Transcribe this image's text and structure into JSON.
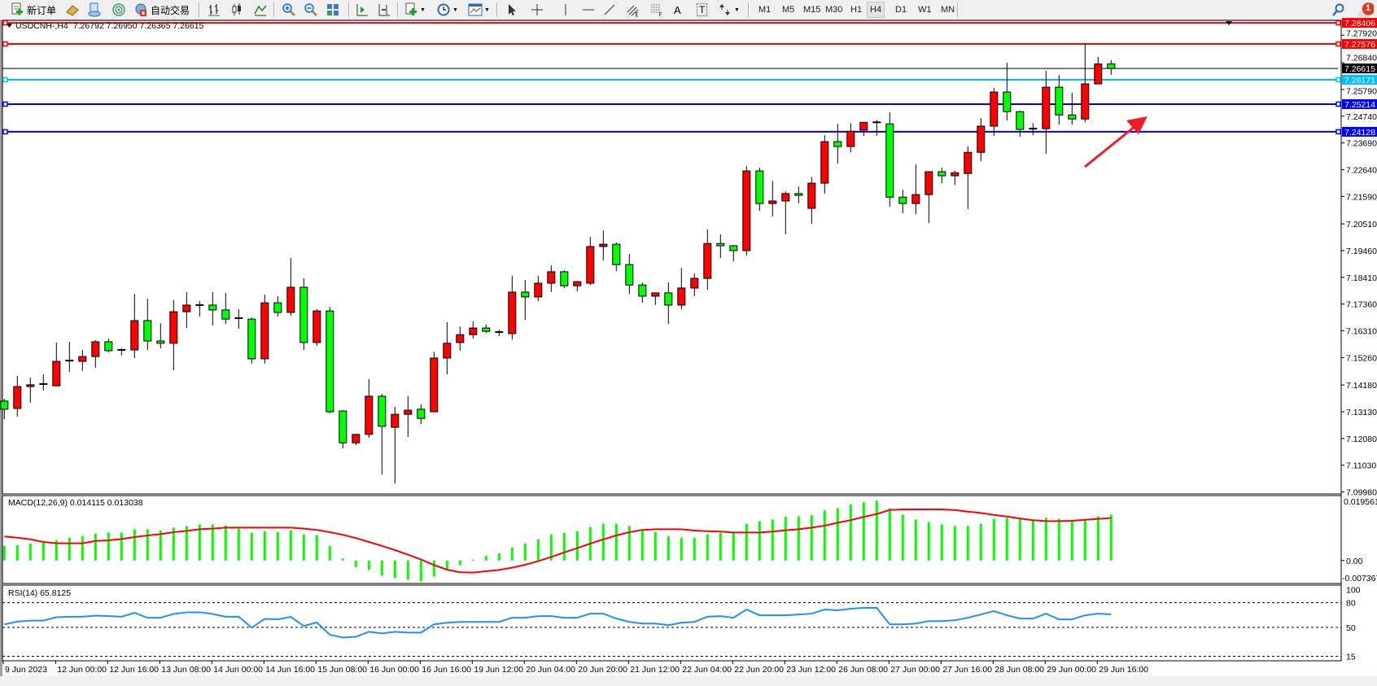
{
  "toolbar": {
    "new_order": "新订单",
    "auto_trading": "自动交易",
    "text_tool": "A",
    "label_tool": "T",
    "timeframes": [
      "M1",
      "M5",
      "M15",
      "M30",
      "H1",
      "H4",
      "D1",
      "W1",
      "MN"
    ],
    "active_timeframe": "H4",
    "notification_count": "1",
    "icons": [
      "new-order-icon",
      "market-watch-icon",
      "history-center-icon",
      "signals-icon",
      "auto-trading-icon",
      "bar-chart-icon",
      "candlestick-icon",
      "line-chart-icon",
      "zoom-in-icon",
      "zoom-out-icon",
      "tile-windows-icon",
      "auto-scroll-icon",
      "chart-shift-icon",
      "indicators-icon",
      "periods-icon",
      "templates-icon",
      "cursor-icon",
      "crosshair-icon",
      "vertical-line-icon",
      "horizontal-line-icon",
      "trendline-icon",
      "fibonacci-channel-icon",
      "fibonacci-retracement-icon",
      "arrows-icon",
      "search-icon",
      "notification-icon"
    ]
  },
  "chart": {
    "symbol_label": "USDCNH-,H4",
    "ohlc_label": "7.26792 7.26950 7.26365 7.26615",
    "bull_color": "#ff0000",
    "bear_color": "#00ff00",
    "arrow_color": "#ee1c24"
  },
  "chart_data": {
    "type": "candlestick",
    "candles_ohlc": [
      [
        7.1355,
        7.1364,
        7.1284,
        7.1323
      ],
      [
        7.1326,
        7.1454,
        7.1294,
        7.1412
      ],
      [
        7.1412,
        7.1447,
        7.1348,
        7.1419
      ],
      [
        7.1419,
        7.146,
        7.1396,
        7.1422
      ],
      [
        7.1415,
        7.1585,
        7.1415,
        7.1511
      ],
      [
        7.1511,
        7.1588,
        7.147,
        7.1514
      ],
      [
        7.1511,
        7.1556,
        7.1473,
        7.153
      ],
      [
        7.153,
        7.1594,
        7.1486,
        7.1588
      ],
      [
        7.1588,
        7.1601,
        7.1546,
        7.1553
      ],
      [
        7.1553,
        7.1562,
        7.1534,
        7.1556
      ],
      [
        7.1556,
        7.1776,
        7.1524,
        7.1671
      ],
      [
        7.1671,
        7.1757,
        7.1556,
        7.1591
      ],
      [
        7.1591,
        7.1661,
        7.1562,
        7.1582
      ],
      [
        7.1582,
        7.1751,
        7.1476,
        7.1706
      ],
      [
        7.1706,
        7.1783,
        7.1642,
        7.1732
      ],
      [
        7.1732,
        7.1748,
        7.1687,
        7.1729
      ],
      [
        7.1732,
        7.1783,
        7.1652,
        7.1713
      ],
      [
        7.1713,
        7.178,
        7.1658,
        7.1677
      ],
      [
        7.1681,
        7.1716,
        7.1639,
        7.1677
      ],
      [
        7.1677,
        7.1684,
        7.1502,
        7.1521
      ],
      [
        7.1521,
        7.1773,
        7.1502,
        7.1741
      ],
      [
        7.1741,
        7.1767,
        7.1687,
        7.1703
      ],
      [
        7.1703,
        7.1917,
        7.169,
        7.1802
      ],
      [
        7.1802,
        7.1837,
        7.1556,
        7.1585
      ],
      [
        7.1585,
        7.1716,
        7.1572,
        7.1709
      ],
      [
        7.1709,
        7.1725,
        7.1307,
        7.1313
      ],
      [
        7.1316,
        7.1319,
        7.1169,
        7.1191
      ],
      [
        7.1191,
        7.1224,
        7.1182,
        7.1224
      ],
      [
        7.1224,
        7.1441,
        7.1211,
        7.1374
      ],
      [
        7.1374,
        7.1383,
        7.1067,
        7.1256
      ],
      [
        7.1252,
        7.1332,
        7.1032,
        7.1303
      ],
      [
        7.1303,
        7.1374,
        7.1214,
        7.1319
      ],
      [
        7.1323,
        7.1342,
        7.1265,
        7.1287
      ],
      [
        7.1313,
        7.1549,
        7.1313,
        7.1524
      ],
      [
        7.1524,
        7.1665,
        7.146,
        7.1582
      ],
      [
        7.1585,
        7.1648,
        7.1553,
        7.1616
      ],
      [
        7.1616,
        7.1668,
        7.1601,
        7.1642
      ],
      [
        7.1642,
        7.1655,
        7.1623,
        7.1629
      ],
      [
        7.1626,
        7.1636,
        7.161,
        7.162
      ],
      [
        7.162,
        7.1847,
        7.1597,
        7.1783
      ],
      [
        7.1783,
        7.1831,
        7.1674,
        7.1764
      ],
      [
        7.1764,
        7.1847,
        7.1748,
        7.1818
      ],
      [
        7.1818,
        7.1888,
        7.1783,
        7.1863
      ],
      [
        7.1863,
        7.1869,
        7.1799,
        7.1808
      ],
      [
        7.1808,
        7.1827,
        7.1786,
        7.1824
      ],
      [
        7.1818,
        7.2,
        7.1811,
        7.1962
      ],
      [
        7.1962,
        7.2025,
        7.1907,
        7.1971
      ],
      [
        7.1971,
        7.1978,
        7.1866,
        7.1891
      ],
      [
        7.1891,
        7.1933,
        7.1776,
        7.1811
      ],
      [
        7.1811,
        7.1821,
        7.1741,
        7.1767
      ],
      [
        7.1767,
        7.178,
        7.1732,
        7.178
      ],
      [
        7.178,
        7.1821,
        7.1658,
        7.1732
      ],
      [
        7.1732,
        7.1878,
        7.1716,
        7.1799
      ],
      [
        7.1799,
        7.1856,
        7.1767,
        7.1837
      ],
      [
        7.1837,
        7.2029,
        7.1792,
        7.1974
      ],
      [
        7.1974,
        7.201,
        7.1917,
        7.1965
      ],
      [
        7.1965,
        7.1968,
        7.1904,
        7.1946
      ],
      [
        7.1946,
        7.2278,
        7.1926,
        7.2259
      ],
      [
        7.2259,
        7.2272,
        7.2102,
        7.2131
      ],
      [
        7.2131,
        7.222,
        7.208,
        7.2141
      ],
      [
        7.2141,
        7.2179,
        7.201,
        7.217
      ],
      [
        7.217,
        7.2198,
        7.2131,
        7.2163
      ],
      [
        7.2112,
        7.2236,
        7.2051,
        7.2211
      ],
      [
        7.2211,
        7.2399,
        7.217,
        7.2374
      ],
      [
        7.2374,
        7.2444,
        7.2288,
        7.2355
      ],
      [
        7.2355,
        7.2447,
        7.2332,
        7.2415
      ],
      [
        7.2419,
        7.245,
        7.2396,
        7.245
      ],
      [
        7.245,
        7.246,
        7.2396,
        7.2444
      ],
      [
        7.2444,
        7.2489,
        7.2118,
        7.2156
      ],
      [
        7.2156,
        7.2185,
        7.2093,
        7.2131
      ],
      [
        7.2131,
        7.2284,
        7.2089,
        7.2166
      ],
      [
        7.2166,
        7.2256,
        7.2054,
        7.2256
      ],
      [
        7.2256,
        7.2272,
        7.2211,
        7.224
      ],
      [
        7.224,
        7.2259,
        7.2204,
        7.2252
      ],
      [
        7.2249,
        7.2355,
        7.2109,
        7.2332
      ],
      [
        7.2332,
        7.2467,
        7.2297,
        7.2435
      ],
      [
        7.2435,
        7.2585,
        7.2396,
        7.2569
      ],
      [
        7.2569,
        7.2684,
        7.2457,
        7.2492
      ],
      [
        7.2492,
        7.2495,
        7.2393,
        7.2422
      ],
      [
        7.2422,
        7.2447,
        7.2399,
        7.2425
      ],
      [
        7.2425,
        7.2652,
        7.2326,
        7.2588
      ],
      [
        7.2588,
        7.2636,
        7.2441,
        7.2479
      ],
      [
        7.2479,
        7.2566,
        7.2441,
        7.2463
      ],
      [
        7.2463,
        7.2757,
        7.245,
        7.2601
      ],
      [
        7.2601,
        7.2707,
        7.2601,
        7.2679
      ],
      [
        7.26792,
        7.2695,
        7.26365,
        7.26615
      ]
    ],
    "price_ticks": [
      "7.27920",
      "7.26840",
      "7.25790",
      "7.24740",
      "7.23690",
      "7.22640",
      "7.21590",
      "7.20510",
      "7.19460",
      "7.18410",
      "7.17360",
      "7.16310",
      "7.15260",
      "7.14180",
      "7.13130",
      "7.12080",
      "7.11030",
      "7.09980"
    ],
    "ylim": [
      7.0998,
      7.28406
    ],
    "horizontal_lines": [
      {
        "price": "7.28406",
        "color": "#ff0000",
        "text_color": "#ffffff"
      },
      {
        "price": "7.27576",
        "color": "#ff0000",
        "text_color": "#ffffff"
      },
      {
        "price": "7.26615",
        "color": "#000000",
        "text_color": "#ffffff"
      },
      {
        "price": "7.26171",
        "color": "#00bfff",
        "text_color": "#ffffff"
      },
      {
        "price": "7.25214",
        "color": "#0000ff",
        "text_color": "#ffffff"
      },
      {
        "price": "7.24128",
        "color": "#0000ff",
        "text_color": "#ffffff"
      }
    ],
    "time_labels": [
      {
        "label": "9 Jun 2023",
        "bar": 0
      },
      {
        "label": "12 Jun 00:00",
        "bar": 4
      },
      {
        "label": "12 Jun 16:00",
        "bar": 8
      },
      {
        "label": "13 Jun 08:00",
        "bar": 12
      },
      {
        "label": "14 Jun 00:00",
        "bar": 16
      },
      {
        "label": "14 Jun 16:00",
        "bar": 20
      },
      {
        "label": "15 Jun 08:00",
        "bar": 24
      },
      {
        "label": "16 Jun 00:00",
        "bar": 28
      },
      {
        "label": "16 Jun 16:00",
        "bar": 32
      },
      {
        "label": "19 Jun 12:00",
        "bar": 36
      },
      {
        "label": "20 Jun 04:00",
        "bar": 40
      },
      {
        "label": "20 Jun 20:00",
        "bar": 44
      },
      {
        "label": "21 Jun 12:00",
        "bar": 48
      },
      {
        "label": "22 Jun 04:00",
        "bar": 52
      },
      {
        "label": "22 Jun 20:00",
        "bar": 56
      },
      {
        "label": "23 Jun 12:00",
        "bar": 60
      },
      {
        "label": "26 Jun 08:00",
        "bar": 64
      },
      {
        "label": "27 Jun 00:00",
        "bar": 68
      },
      {
        "label": "27 Jun 16:00",
        "bar": 72
      },
      {
        "label": "28 Jun 08:00",
        "bar": 76
      },
      {
        "label": "29 Jun 00:00",
        "bar": 80
      },
      {
        "label": "29 Jun 16:00",
        "bar": 84
      }
    ],
    "macd": {
      "title": "MACD(12,26,9) 0.014115 0.013038",
      "axis_labels": [
        "0.019561",
        "0.00",
        "-0.007367"
      ],
      "ylim": [
        -0.007367,
        0.019561
      ],
      "histogram_color": "#00ff00",
      "signal_color": "#ff0000",
      "histogram": [
        0.0045,
        0.0047,
        0.0052,
        0.0056,
        0.0063,
        0.007,
        0.0075,
        0.0083,
        0.0086,
        0.0086,
        0.0096,
        0.0096,
        0.0092,
        0.0101,
        0.0106,
        0.0111,
        0.0111,
        0.0108,
        0.0098,
        0.0085,
        0.009,
        0.0088,
        0.0093,
        0.008,
        0.0078,
        0.0045,
        0.0006,
        -0.002,
        -0.0029,
        -0.0046,
        -0.0054,
        -0.0059,
        -0.0064,
        -0.0049,
        -0.003,
        -0.0014,
        0.0003,
        0.0014,
        0.0022,
        0.004,
        0.0052,
        0.0065,
        0.008,
        0.0085,
        0.009,
        0.0103,
        0.0113,
        0.0113,
        0.0106,
        0.0093,
        0.0088,
        0.0075,
        0.007,
        0.007,
        0.008,
        0.0085,
        0.0085,
        0.0113,
        0.0121,
        0.0126,
        0.0134,
        0.0136,
        0.0139,
        0.0154,
        0.0161,
        0.0172,
        0.0179,
        0.0184,
        0.0161,
        0.0141,
        0.0126,
        0.0118,
        0.0111,
        0.0106,
        0.0106,
        0.0113,
        0.0128,
        0.0131,
        0.0128,
        0.0123,
        0.0131,
        0.0128,
        0.0123,
        0.0128,
        0.0136,
        0.014115
      ],
      "signal": [
        0.0074,
        0.007,
        0.0065,
        0.0057,
        0.0053,
        0.0053,
        0.0053,
        0.006,
        0.0062,
        0.0066,
        0.0072,
        0.0077,
        0.0081,
        0.0087,
        0.0091,
        0.0096,
        0.0098,
        0.0101,
        0.0101,
        0.0101,
        0.0101,
        0.0101,
        0.0101,
        0.0098,
        0.0094,
        0.0087,
        0.0079,
        0.0069,
        0.0057,
        0.0045,
        0.0032,
        0.0018,
        0.0003,
        -0.0014,
        -0.0028,
        -0.0036,
        -0.0037,
        -0.0033,
        -0.0029,
        -0.0022,
        -0.0013,
        -0.0002,
        0.0011,
        0.0025,
        0.0038,
        0.0052,
        0.0065,
        0.0077,
        0.0087,
        0.0094,
        0.0096,
        0.0096,
        0.0096,
        0.0092,
        0.009,
        0.0089,
        0.0086,
        0.0086,
        0.0086,
        0.0089,
        0.0093,
        0.0096,
        0.0101,
        0.0107,
        0.0116,
        0.0124,
        0.0134,
        0.0143,
        0.0155,
        0.0157,
        0.0157,
        0.0157,
        0.0157,
        0.0155,
        0.015,
        0.0146,
        0.014,
        0.0135,
        0.0129,
        0.0124,
        0.0121,
        0.0121,
        0.0122,
        0.0125,
        0.0128,
        0.013038
      ]
    },
    "rsi": {
      "title": "RSI(14) 65.8125",
      "axis_labels": [
        "100",
        "80",
        "50",
        "15"
      ],
      "levels": [
        80,
        50,
        15
      ],
      "line_color": "#1e90ff",
      "values": [
        53.7,
        57.0,
        58.3,
        58.3,
        62.3,
        63.0,
        63.0,
        64.3,
        63.7,
        63.0,
        67.7,
        61.7,
        61.7,
        66.3,
        68.3,
        68.3,
        66.3,
        63.0,
        63.0,
        49.7,
        60.3,
        59.7,
        62.7,
        51.7,
        56.0,
        41.0,
        37.7,
        38.7,
        44.7,
        42.7,
        44.7,
        43.7,
        43.7,
        53.7,
        55.7,
        56.7,
        56.7,
        56.7,
        56.7,
        61.7,
        61.7,
        63.7,
        63.7,
        61.7,
        61.7,
        66.7,
        66.7,
        60.7,
        56.7,
        54.7,
        54.7,
        52.7,
        55.7,
        56.7,
        63.0,
        63.7,
        61.7,
        71.7,
        64.7,
        64.7,
        64.7,
        65.7,
        66.7,
        71.7,
        70.7,
        72.7,
        73.7,
        73.7,
        53.7,
        53.7,
        54.7,
        57.7,
        57.7,
        58.7,
        61.7,
        65.7,
        69.7,
        64.7,
        60.7,
        60.7,
        66.7,
        59.7,
        59.7,
        64.7,
        66.7,
        65.8125
      ]
    }
  }
}
